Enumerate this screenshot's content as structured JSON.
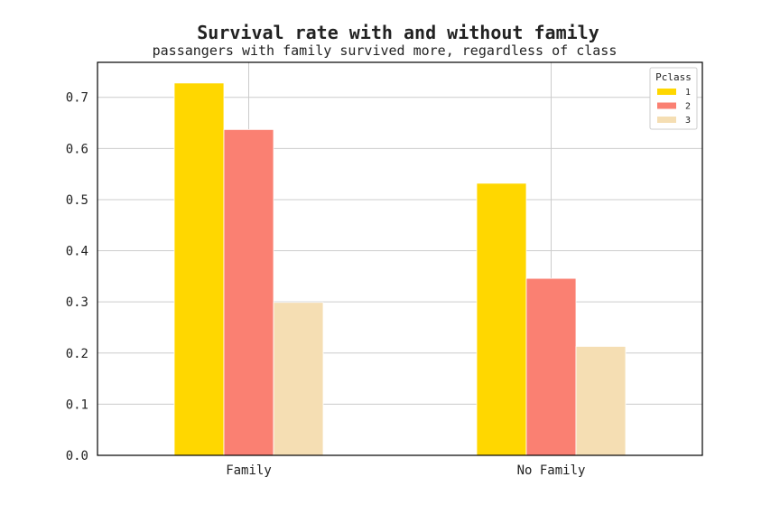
{
  "chart_data": {
    "type": "bar",
    "title": "Survival rate with and without family",
    "subtitle": "passangers with family survived more, regardless of class",
    "xlabel": "",
    "ylabel": "",
    "categories": [
      "Family",
      "No Family"
    ],
    "series": [
      {
        "name": "1",
        "color": "#FFD700",
        "values": [
          0.728,
          0.532
        ]
      },
      {
        "name": "2",
        "color": "#FA8072",
        "values": [
          0.637,
          0.346
        ]
      },
      {
        "name": "3",
        "color": "#F5DEB3",
        "values": [
          0.299,
          0.213
        ]
      }
    ],
    "ylim": [
      0,
      0.7684
    ],
    "yticks": [
      0.0,
      0.1,
      0.2,
      0.3,
      0.4,
      0.5,
      0.6,
      0.7
    ],
    "ytick_labels": [
      "0.0",
      "0.1",
      "0.2",
      "0.3",
      "0.4",
      "0.5",
      "0.6",
      "0.7"
    ],
    "grid": true,
    "legend": {
      "title": "Pclass",
      "position": "top-right"
    }
  }
}
